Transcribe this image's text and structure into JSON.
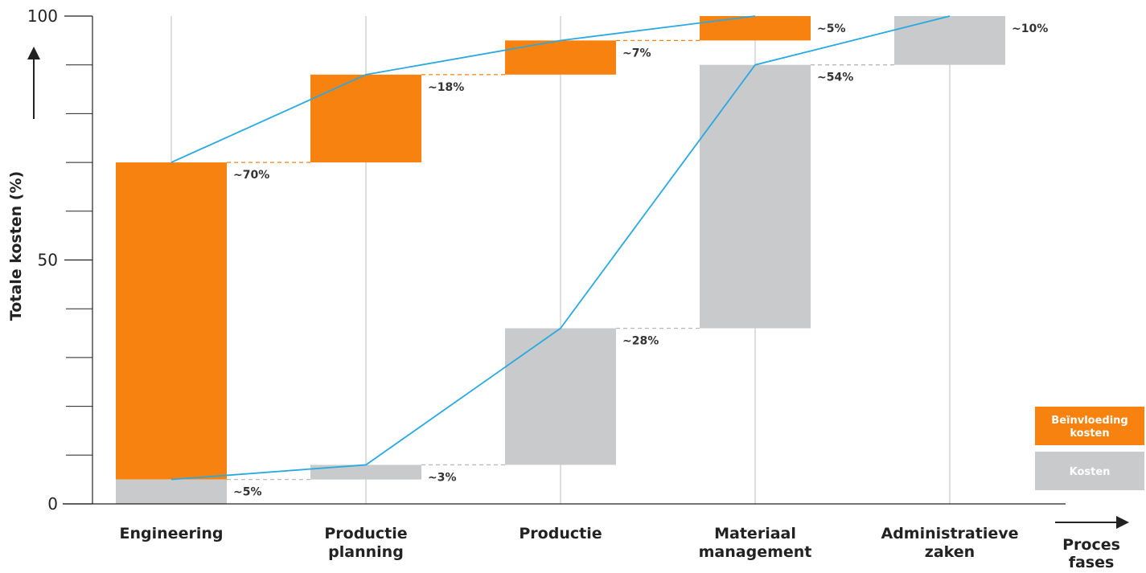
{
  "chart_data": {
    "type": "bar",
    "subtype": "stacked-waterfall",
    "ylabel": "Totale kosten (%)",
    "xlabel_lines": [
      "Proces",
      "fases"
    ],
    "ylim": [
      0,
      100
    ],
    "yticks_labeled": [
      0,
      50,
      100
    ],
    "yticks_minor": [
      10,
      20,
      30,
      40,
      60,
      70,
      80,
      90
    ],
    "categories": [
      {
        "lines": [
          "Engineering"
        ]
      },
      {
        "lines": [
          "Productie",
          "planning"
        ]
      },
      {
        "lines": [
          "Productie"
        ]
      },
      {
        "lines": [
          "Materiaal",
          "management"
        ]
      },
      {
        "lines": [
          "Administratieve",
          "zaken"
        ]
      }
    ],
    "series": [
      {
        "name": "Beïnvloeding kosten",
        "color": "#f7820f",
        "segments": [
          [
            5,
            70
          ],
          [
            70,
            88
          ],
          [
            88,
            95
          ],
          [
            95,
            100
          ],
          null
        ],
        "labels": [
          "~70%",
          "~18%",
          "~7%",
          "~5%",
          null
        ]
      },
      {
        "name": "Kosten",
        "color": "#c9cacc",
        "segments": [
          [
            0,
            5
          ],
          [
            5,
            8
          ],
          [
            8,
            36
          ],
          [
            36,
            90
          ],
          [
            90,
            100
          ]
        ],
        "labels": [
          "~5%",
          "~3%",
          "~28%",
          "~54%",
          "~10%"
        ]
      }
    ],
    "lines": [
      {
        "name": "Beïnvloeding kosten",
        "color": "#2aa9e0",
        "values": [
          70,
          88,
          95,
          100
        ]
      },
      {
        "name": "Kosten",
        "color": "#2aa9e0",
        "values": [
          5,
          8,
          36,
          90,
          100
        ]
      }
    ],
    "legend": {
      "placement": "bottom-right",
      "items": [
        {
          "label_lines": [
            "Beïnvloeding",
            "kosten"
          ],
          "color": "#f7820f"
        },
        {
          "label_lines": [
            "Kosten"
          ],
          "color": "#c9cacc"
        }
      ]
    },
    "grid": false
  }
}
